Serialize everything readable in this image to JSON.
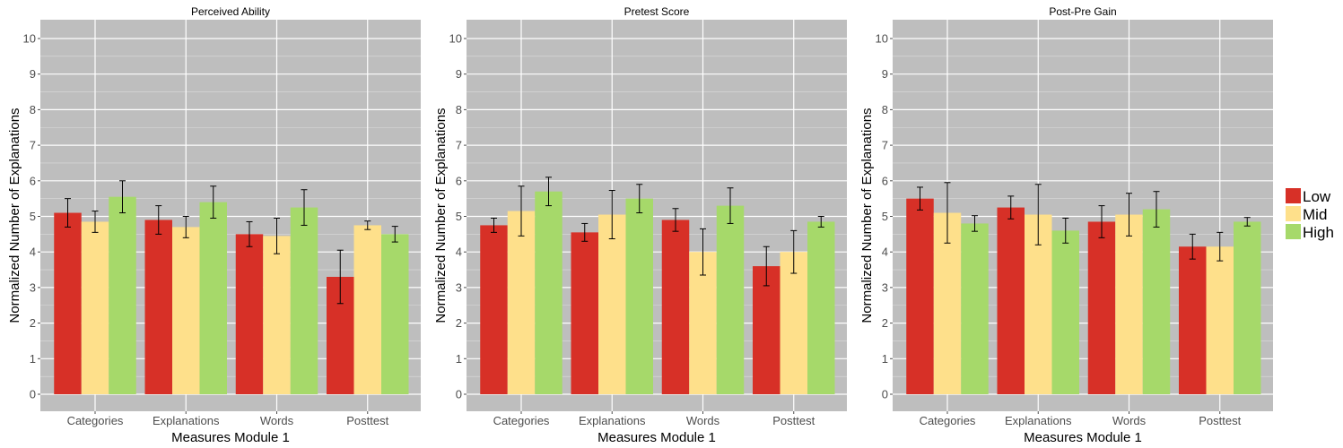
{
  "chart_data": [
    {
      "type": "bar",
      "title": "Perceived Ability",
      "xlabel": "Measures Module 1",
      "ylabel": "Normalized Number of Explanations",
      "categories": [
        "Categories",
        "Explanations",
        "Words",
        "Posttest"
      ],
      "ylim": [
        0,
        10
      ],
      "yticks": [
        0,
        1,
        2,
        3,
        4,
        5,
        6,
        7,
        8,
        9,
        10
      ],
      "series": [
        {
          "name": "Low",
          "values": [
            5.1,
            4.9,
            4.5,
            3.3
          ],
          "error": [
            0.4,
            0.4,
            0.35,
            0.75
          ]
        },
        {
          "name": "Mid",
          "values": [
            4.85,
            4.7,
            4.45,
            4.75
          ],
          "error": [
            0.3,
            0.3,
            0.5,
            0.12
          ]
        },
        {
          "name": "High",
          "values": [
            5.55,
            5.4,
            5.25,
            4.5
          ],
          "error": [
            0.45,
            0.45,
            0.5,
            0.22
          ]
        }
      ]
    },
    {
      "type": "bar",
      "title": "Pretest Score",
      "xlabel": "Measures Module 1",
      "ylabel": "Normalized Number of Explanations",
      "categories": [
        "Categories",
        "Explanations",
        "Words",
        "Posttest"
      ],
      "ylim": [
        0,
        10
      ],
      "yticks": [
        0,
        1,
        2,
        3,
        4,
        5,
        6,
        7,
        8,
        9,
        10
      ],
      "series": [
        {
          "name": "Low",
          "values": [
            4.75,
            4.55,
            4.9,
            3.6
          ],
          "error": [
            0.2,
            0.25,
            0.32,
            0.55
          ]
        },
        {
          "name": "Mid",
          "values": [
            5.15,
            5.05,
            4.0,
            4.0
          ],
          "error": [
            0.7,
            0.68,
            0.65,
            0.6
          ]
        },
        {
          "name": "High",
          "values": [
            5.7,
            5.5,
            5.3,
            4.85
          ],
          "error": [
            0.4,
            0.4,
            0.5,
            0.15
          ]
        }
      ]
    },
    {
      "type": "bar",
      "title": "Post-Pre Gain",
      "xlabel": "Measures Module 1",
      "ylabel": "Normalized Number of Explanations",
      "categories": [
        "Categories",
        "Explanations",
        "Words",
        "Posttest"
      ],
      "ylim": [
        0,
        10
      ],
      "yticks": [
        0,
        1,
        2,
        3,
        4,
        5,
        6,
        7,
        8,
        9,
        10
      ],
      "series": [
        {
          "name": "Low",
          "values": [
            5.5,
            5.25,
            4.85,
            4.15
          ],
          "error": [
            0.32,
            0.32,
            0.45,
            0.35
          ]
        },
        {
          "name": "Mid",
          "values": [
            5.1,
            5.05,
            5.05,
            4.15
          ],
          "error": [
            0.85,
            0.85,
            0.6,
            0.4
          ]
        },
        {
          "name": "High",
          "values": [
            4.8,
            4.6,
            5.2,
            4.85
          ],
          "error": [
            0.22,
            0.35,
            0.5,
            0.12
          ]
        }
      ]
    }
  ],
  "legend": {
    "placement": "right",
    "items": [
      {
        "label": "Low",
        "color": "#d73027"
      },
      {
        "label": "Mid",
        "color": "#fee08b"
      },
      {
        "label": "High",
        "color": "#a6d96a"
      }
    ]
  },
  "style": {
    "panel_background": "#bebebe",
    "grid_color": "#ffffff",
    "errorbar_color": "#000000"
  }
}
